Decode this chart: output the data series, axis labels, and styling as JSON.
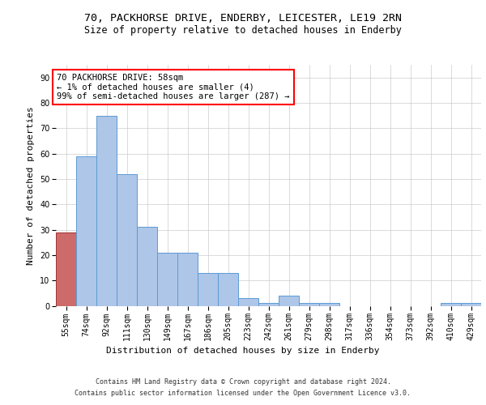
{
  "title_line1": "70, PACKHORSE DRIVE, ENDERBY, LEICESTER, LE19 2RN",
  "title_line2": "Size of property relative to detached houses in Enderby",
  "xlabel": "Distribution of detached houses by size in Enderby",
  "ylabel": "Number of detached properties",
  "categories": [
    "55sqm",
    "74sqm",
    "92sqm",
    "111sqm",
    "130sqm",
    "149sqm",
    "167sqm",
    "186sqm",
    "205sqm",
    "223sqm",
    "242sqm",
    "261sqm",
    "279sqm",
    "298sqm",
    "317sqm",
    "336sqm",
    "354sqm",
    "373sqm",
    "392sqm",
    "410sqm",
    "429sqm"
  ],
  "values": [
    29,
    59,
    75,
    52,
    31,
    21,
    21,
    13,
    13,
    3,
    1,
    4,
    1,
    1,
    0,
    0,
    0,
    0,
    0,
    1,
    1
  ],
  "bar_color": "#aec6e8",
  "bar_edge_color": "#5b9bd5",
  "highlight_bar_index": 0,
  "highlight_bar_color": "#cd6b6b",
  "highlight_bar_edge_color": "#a03030",
  "annotation_box_text": "70 PACKHORSE DRIVE: 58sqm\n← 1% of detached houses are smaller (4)\n99% of semi-detached houses are larger (287) →",
  "ylim": [
    0,
    95
  ],
  "yticks": [
    0,
    10,
    20,
    30,
    40,
    50,
    60,
    70,
    80,
    90
  ],
  "grid_color": "#cccccc",
  "background_color": "#ffffff",
  "footer_line1": "Contains HM Land Registry data © Crown copyright and database right 2024.",
  "footer_line2": "Contains public sector information licensed under the Open Government Licence v3.0.",
  "title_fontsize": 9.5,
  "subtitle_fontsize": 8.5,
  "ylabel_fontsize": 8,
  "xlabel_fontsize": 8,
  "tick_fontsize": 7,
  "annotation_fontsize": 7.5,
  "footer_fontsize": 6
}
